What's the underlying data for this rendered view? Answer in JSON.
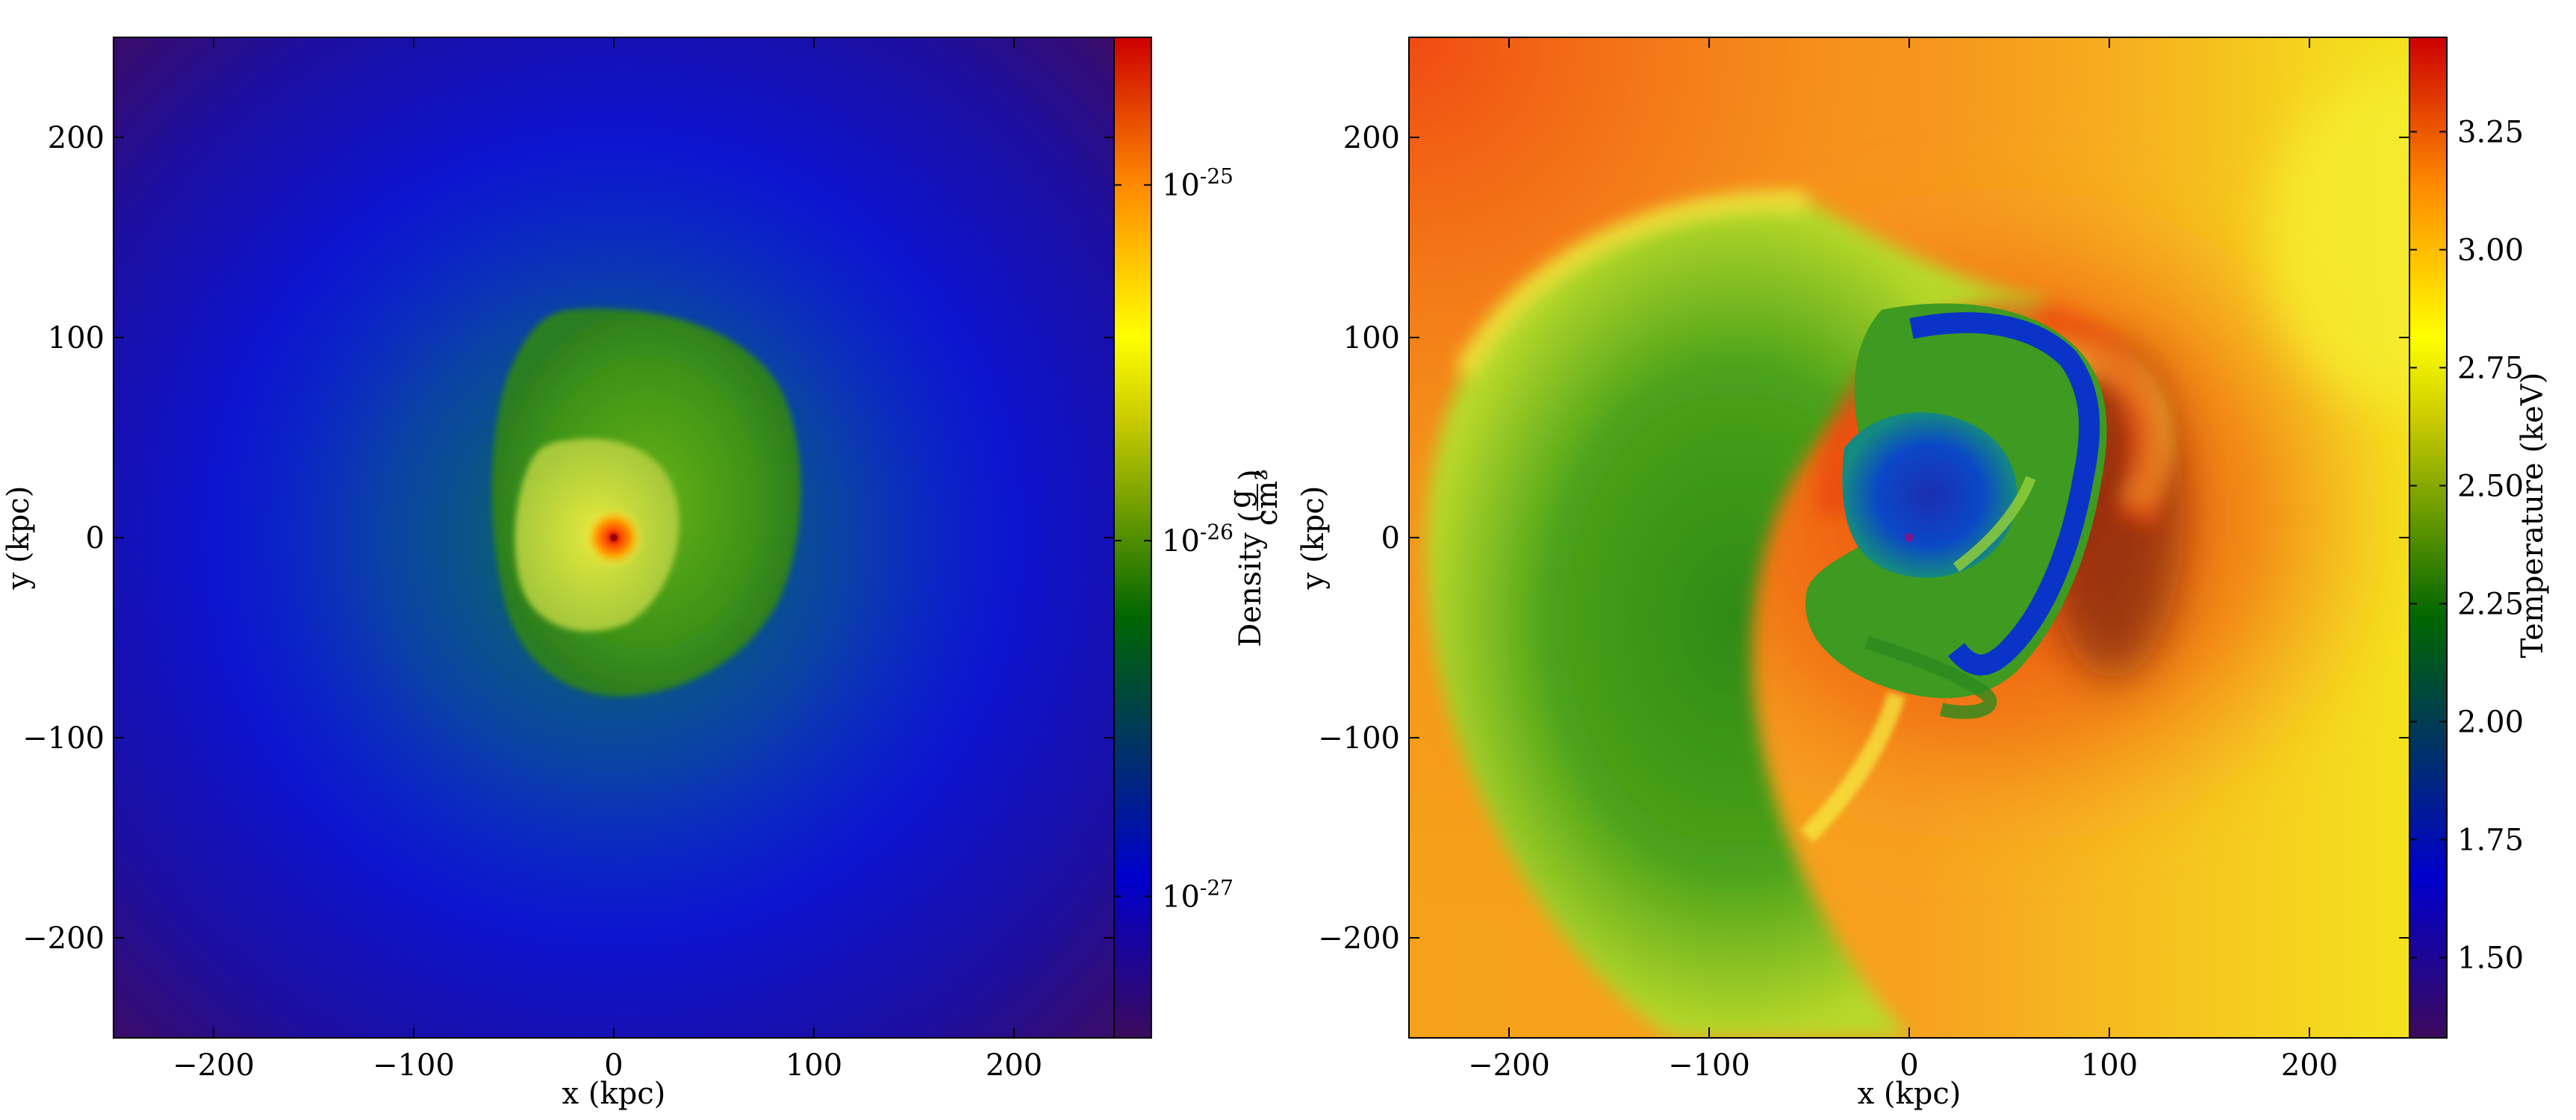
{
  "chart_data": [
    {
      "type": "heatmap",
      "quantity": "density",
      "xlabel": "x  (kpc)",
      "ylabel": "y  (kpc)",
      "xlim": [
        -250,
        250
      ],
      "ylim": [
        -250,
        250
      ],
      "xticks": [
        -200,
        -100,
        0,
        100,
        200
      ],
      "yticks": [
        -200,
        -100,
        0,
        100,
        200
      ],
      "xtick_labels": [
        "−200",
        "−100",
        "0",
        "100",
        "200"
      ],
      "ytick_labels": [
        "−200",
        "−100",
        "0",
        "100",
        "200"
      ],
      "colorbar": {
        "label": "Density",
        "unit_numerator": "g",
        "unit_denominator": "cm³",
        "scale": "log",
        "range": [
          4e-28,
          2.6e-25
        ],
        "ticks": [
          {
            "value": 1e-25,
            "base": "10",
            "exp": "-25"
          },
          {
            "value": 1e-26,
            "base": "10",
            "exp": "-26"
          },
          {
            "value": 1e-27,
            "base": "10",
            "exp": "-27"
          }
        ]
      },
      "colormap": [
        "#3b0a5c",
        "#0000cc",
        "#006600",
        "#cccc00",
        "#ffff00",
        "#ff8c00",
        "#cc0000"
      ],
      "features": {
        "background_level": 1.3e-27,
        "core_center": [
          0,
          0
        ],
        "core_peak": 2.6e-25,
        "inner_cloud_radius_kpc": 50,
        "outer_cloud_radius_kpc": 95
      }
    },
    {
      "type": "heatmap",
      "quantity": "temperature",
      "xlabel": "x  (kpc)",
      "ylabel": "y  (kpc)",
      "xlim": [
        -250,
        250
      ],
      "ylim": [
        -250,
        250
      ],
      "xticks": [
        -200,
        -100,
        0,
        100,
        200
      ],
      "yticks": [
        -200,
        -100,
        0,
        100,
        200
      ],
      "xtick_labels": [
        "−200",
        "−100",
        "0",
        "100",
        "200"
      ],
      "ytick_labels": [
        "−200",
        "−100",
        "0",
        "100",
        "200"
      ],
      "colorbar": {
        "label": "Temperature  (keV)",
        "scale": "linear",
        "range": [
          1.33,
          3.45
        ],
        "ticks": [
          1.5,
          1.75,
          2.0,
          2.25,
          2.5,
          2.75,
          3.0,
          3.25
        ],
        "tick_labels": [
          "1.50",
          "1.75",
          "2.00",
          "2.25",
          "2.50",
          "2.75",
          "3.00",
          "3.25"
        ]
      },
      "colormap": [
        "#3b0a5c",
        "#0000cc",
        "#006600",
        "#cccc00",
        "#ffff00",
        "#ff8c00",
        "#cc0000"
      ],
      "features": {
        "cool_core_center": [
          0,
          0
        ],
        "cool_core_temperature": 1.7,
        "cold_front_radius_kpc": 95,
        "hot_region_temperature": 3.3,
        "cool_arc_temperature": 2.2
      }
    }
  ]
}
